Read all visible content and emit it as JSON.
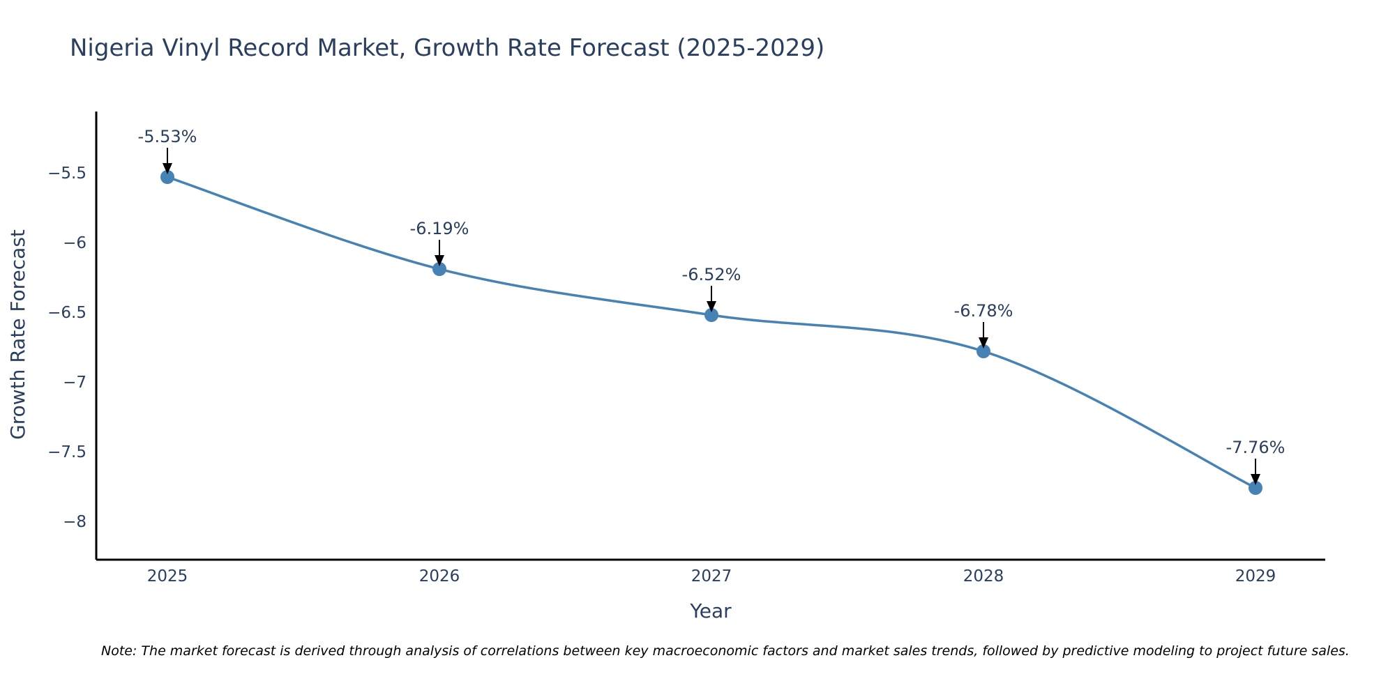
{
  "chart_data": {
    "type": "line",
    "title": "Nigeria Vinyl Record Market, Growth Rate Forecast (2025-2029)",
    "xlabel": "Year",
    "ylabel": "Growth Rate Forecast",
    "categories": [
      "2025",
      "2026",
      "2027",
      "2028",
      "2029"
    ],
    "values": [
      -5.53,
      -6.19,
      -6.52,
      -6.78,
      -7.76
    ],
    "annotations": [
      "-5.53%",
      "-6.19%",
      "-6.52%",
      "-6.78%",
      "-7.76%"
    ],
    "y_ticks": [
      -5.5,
      -6,
      -6.5,
      -7,
      -7.5,
      -8
    ],
    "y_tick_labels": [
      "−5.5",
      "−6",
      "−6.5",
      "−7",
      "−7.5",
      "−8"
    ],
    "ylim": [
      -8.27,
      -5.06
    ],
    "line_shape": "spline",
    "grid": false,
    "line_color": "#4682B4",
    "note": "Note: The market forecast is derived through analysis of correlations between key macroeconomic factors and market sales trends, followed by predictive modeling to project future sales."
  }
}
